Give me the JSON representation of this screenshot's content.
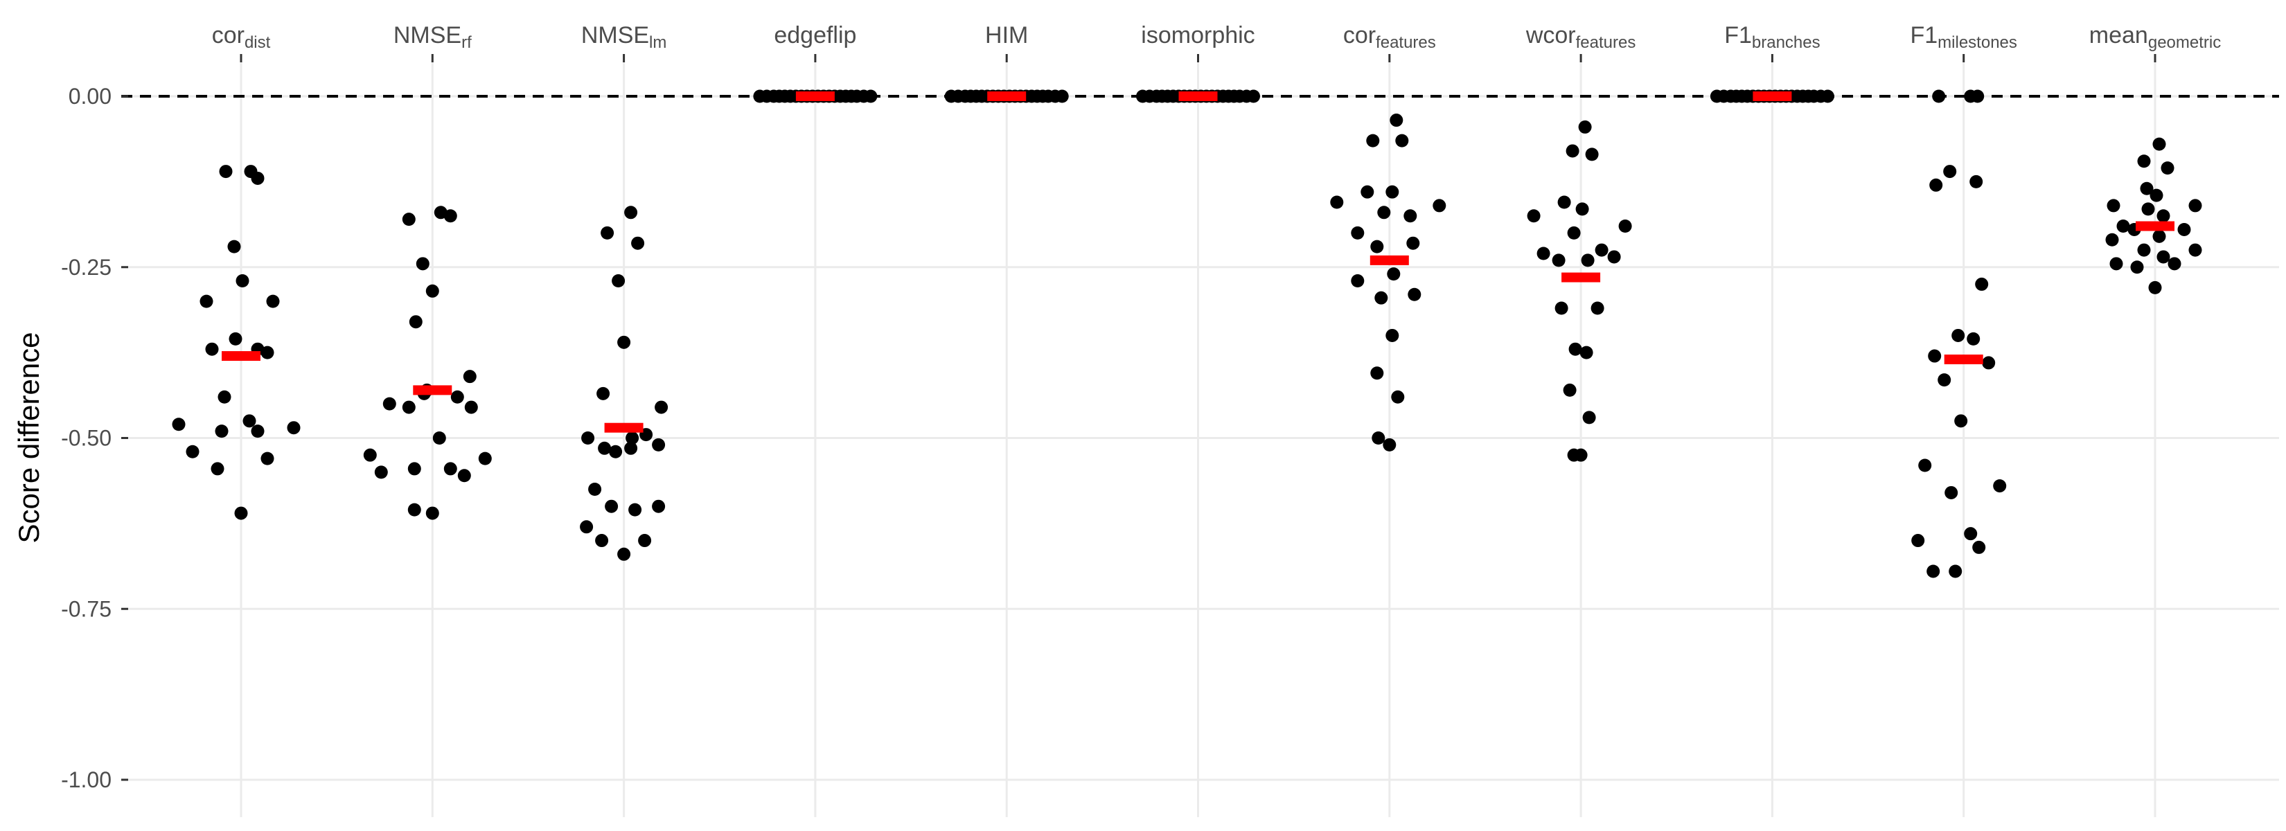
{
  "chart_data": {
    "type": "scatter",
    "ylabel": "Score difference",
    "ylim": [
      -1.0,
      0.0
    ],
    "y_ticks": [
      0.0,
      -0.25,
      -0.5,
      -0.75,
      -1.0
    ],
    "y_tick_labels": [
      "0.00",
      "-0.25",
      "-0.50",
      "-0.75",
      "-1.00"
    ],
    "reference_line": 0.0,
    "grid": true,
    "legend": "none",
    "point_color": "#000000",
    "median_color": "#ff0000",
    "categories": [
      {
        "base": "cor",
        "sub": "dist"
      },
      {
        "base": "NMSE",
        "sub": "rf"
      },
      {
        "base": "NMSE",
        "sub": "lm"
      },
      {
        "base": "edgeflip",
        "sub": ""
      },
      {
        "base": "HIM",
        "sub": ""
      },
      {
        "base": "isomorphic",
        "sub": ""
      },
      {
        "base": "cor",
        "sub": "features"
      },
      {
        "base": "wcor",
        "sub": "features"
      },
      {
        "base": "F1",
        "sub": "branches"
      },
      {
        "base": "F1",
        "sub": "milestones"
      },
      {
        "base": "mean",
        "sub": "geometric"
      }
    ],
    "series": [
      {
        "median": -0.38,
        "points": [
          [
            -0.11,
            -0.11
          ],
          [
            0.07,
            -0.11
          ],
          [
            0.12,
            -0.12
          ],
          [
            -0.05,
            -0.22
          ],
          [
            0.01,
            -0.27
          ],
          [
            -0.25,
            -0.3
          ],
          [
            0.23,
            -0.3
          ],
          [
            -0.04,
            -0.355
          ],
          [
            -0.21,
            -0.37
          ],
          [
            0.12,
            -0.37
          ],
          [
            0.19,
            -0.375
          ],
          [
            -0.12,
            -0.44
          ],
          [
            -0.45,
            -0.48
          ],
          [
            0.06,
            -0.475
          ],
          [
            0.38,
            -0.485
          ],
          [
            -0.14,
            -0.49
          ],
          [
            0.12,
            -0.49
          ],
          [
            -0.35,
            -0.52
          ],
          [
            0.19,
            -0.53
          ],
          [
            -0.17,
            -0.545
          ],
          [
            0.0,
            -0.61
          ]
        ]
      },
      {
        "median": -0.43,
        "points": [
          [
            -0.17,
            -0.18
          ],
          [
            0.06,
            -0.17
          ],
          [
            0.13,
            -0.175
          ],
          [
            -0.07,
            -0.245
          ],
          [
            0.0,
            -0.285
          ],
          [
            -0.12,
            -0.33
          ],
          [
            0.27,
            -0.41
          ],
          [
            0.18,
            -0.44
          ],
          [
            -0.06,
            -0.435
          ],
          [
            -0.04,
            -0.43
          ],
          [
            -0.31,
            -0.45
          ],
          [
            -0.17,
            -0.455
          ],
          [
            0.28,
            -0.455
          ],
          [
            0.05,
            -0.5
          ],
          [
            -0.45,
            -0.525
          ],
          [
            0.38,
            -0.53
          ],
          [
            -0.37,
            -0.55
          ],
          [
            -0.13,
            -0.545
          ],
          [
            0.13,
            -0.545
          ],
          [
            0.23,
            -0.555
          ],
          [
            -0.13,
            -0.605
          ],
          [
            0.0,
            -0.61
          ]
        ]
      },
      {
        "median": -0.485,
        "points": [
          [
            -0.12,
            -0.2
          ],
          [
            0.05,
            -0.17
          ],
          [
            0.1,
            -0.215
          ],
          [
            -0.04,
            -0.27
          ],
          [
            0.0,
            -0.36
          ],
          [
            -0.15,
            -0.435
          ],
          [
            0.27,
            -0.455
          ],
          [
            -0.26,
            -0.5
          ],
          [
            0.16,
            -0.495
          ],
          [
            0.06,
            -0.5
          ],
          [
            0.25,
            -0.51
          ],
          [
            -0.14,
            -0.515
          ],
          [
            0.05,
            -0.515
          ],
          [
            -0.06,
            -0.52
          ],
          [
            -0.21,
            -0.575
          ],
          [
            -0.09,
            -0.6
          ],
          [
            0.08,
            -0.605
          ],
          [
            0.25,
            -0.6
          ],
          [
            -0.27,
            -0.63
          ],
          [
            -0.16,
            -0.65
          ],
          [
            0.15,
            -0.65
          ],
          [
            0.0,
            -0.67
          ]
        ]
      },
      {
        "median": 0.0,
        "points": [
          [
            -0.4,
            0
          ],
          [
            -0.35,
            0
          ],
          [
            -0.3,
            0
          ],
          [
            -0.26,
            0
          ],
          [
            -0.22,
            0
          ],
          [
            -0.18,
            0
          ],
          [
            -0.14,
            0
          ],
          [
            -0.1,
            0
          ],
          [
            -0.06,
            0
          ],
          [
            -0.02,
            0
          ],
          [
            0.02,
            0
          ],
          [
            0.06,
            0
          ],
          [
            0.1,
            0
          ],
          [
            0.14,
            0
          ],
          [
            0.18,
            0
          ],
          [
            0.22,
            0
          ],
          [
            0.26,
            0
          ],
          [
            0.3,
            0
          ],
          [
            0.35,
            0
          ],
          [
            0.4,
            0
          ]
        ]
      },
      {
        "median": 0.0,
        "points": [
          [
            -0.4,
            0
          ],
          [
            -0.35,
            0
          ],
          [
            -0.3,
            0
          ],
          [
            -0.26,
            0
          ],
          [
            -0.22,
            0
          ],
          [
            -0.18,
            0
          ],
          [
            -0.14,
            0
          ],
          [
            -0.1,
            0
          ],
          [
            -0.06,
            0
          ],
          [
            -0.02,
            0
          ],
          [
            0.02,
            0
          ],
          [
            0.06,
            0
          ],
          [
            0.1,
            0
          ],
          [
            0.14,
            0
          ],
          [
            0.18,
            0
          ],
          [
            0.22,
            0
          ],
          [
            0.26,
            0
          ],
          [
            0.3,
            0
          ],
          [
            0.35,
            0
          ],
          [
            0.4,
            0
          ]
        ]
      },
      {
        "median": 0.0,
        "points": [
          [
            -0.4,
            0
          ],
          [
            -0.35,
            0
          ],
          [
            -0.3,
            0
          ],
          [
            -0.26,
            0
          ],
          [
            -0.22,
            0
          ],
          [
            -0.18,
            0
          ],
          [
            -0.14,
            0
          ],
          [
            -0.1,
            0
          ],
          [
            -0.06,
            0
          ],
          [
            -0.02,
            0
          ],
          [
            0.02,
            0
          ],
          [
            0.06,
            0
          ],
          [
            0.1,
            0
          ],
          [
            0.14,
            0
          ],
          [
            0.18,
            0
          ],
          [
            0.22,
            0
          ],
          [
            0.26,
            0
          ],
          [
            0.3,
            0
          ],
          [
            0.35,
            0
          ],
          [
            0.4,
            0
          ]
        ]
      },
      {
        "median": -0.24,
        "points": [
          [
            0.05,
            -0.035
          ],
          [
            -0.12,
            -0.065
          ],
          [
            0.09,
            -0.065
          ],
          [
            -0.16,
            -0.14
          ],
          [
            0.02,
            -0.14
          ],
          [
            -0.38,
            -0.155
          ],
          [
            0.36,
            -0.16
          ],
          [
            -0.04,
            -0.17
          ],
          [
            0.15,
            -0.175
          ],
          [
            -0.23,
            -0.2
          ],
          [
            -0.09,
            -0.22
          ],
          [
            0.17,
            -0.215
          ],
          [
            -0.23,
            -0.27
          ],
          [
            0.03,
            -0.26
          ],
          [
            0.18,
            -0.29
          ],
          [
            -0.06,
            -0.295
          ],
          [
            0.02,
            -0.35
          ],
          [
            -0.09,
            -0.405
          ],
          [
            0.06,
            -0.44
          ],
          [
            -0.08,
            -0.5
          ],
          [
            0.0,
            -0.51
          ]
        ]
      },
      {
        "median": -0.265,
        "points": [
          [
            0.03,
            -0.045
          ],
          [
            -0.06,
            -0.08
          ],
          [
            0.08,
            -0.085
          ],
          [
            -0.34,
            -0.175
          ],
          [
            -0.12,
            -0.155
          ],
          [
            0.01,
            -0.165
          ],
          [
            0.32,
            -0.19
          ],
          [
            -0.05,
            -0.2
          ],
          [
            -0.27,
            -0.23
          ],
          [
            -0.16,
            -0.24
          ],
          [
            0.15,
            -0.225
          ],
          [
            0.24,
            -0.235
          ],
          [
            0.05,
            -0.24
          ],
          [
            -0.14,
            -0.31
          ],
          [
            0.12,
            -0.31
          ],
          [
            -0.04,
            -0.37
          ],
          [
            0.04,
            -0.375
          ],
          [
            -0.08,
            -0.43
          ],
          [
            0.06,
            -0.47
          ],
          [
            -0.05,
            -0.525
          ],
          [
            0.0,
            -0.525
          ]
        ]
      },
      {
        "median": 0.0,
        "points": [
          [
            -0.4,
            0
          ],
          [
            -0.35,
            0
          ],
          [
            -0.3,
            0
          ],
          [
            -0.26,
            0
          ],
          [
            -0.22,
            0
          ],
          [
            -0.18,
            0
          ],
          [
            -0.14,
            0
          ],
          [
            -0.1,
            0
          ],
          [
            -0.06,
            0
          ],
          [
            -0.02,
            0
          ],
          [
            0.02,
            0
          ],
          [
            0.06,
            0
          ],
          [
            0.1,
            0
          ],
          [
            0.14,
            0
          ],
          [
            0.18,
            0
          ],
          [
            0.22,
            0
          ],
          [
            0.26,
            0
          ],
          [
            0.3,
            0
          ],
          [
            0.35,
            0
          ],
          [
            0.4,
            0
          ]
        ]
      },
      {
        "median": -0.385,
        "points": [
          [
            -0.18,
            0
          ],
          [
            0.05,
            0
          ],
          [
            0.1,
            0
          ],
          [
            -0.2,
            -0.13
          ],
          [
            -0.1,
            -0.11
          ],
          [
            0.09,
            -0.125
          ],
          [
            0.13,
            -0.275
          ],
          [
            -0.04,
            -0.35
          ],
          [
            0.07,
            -0.355
          ],
          [
            -0.21,
            -0.38
          ],
          [
            0.18,
            -0.39
          ],
          [
            -0.14,
            -0.415
          ],
          [
            -0.02,
            -0.475
          ],
          [
            -0.28,
            -0.54
          ],
          [
            0.26,
            -0.57
          ],
          [
            -0.09,
            -0.58
          ],
          [
            -0.33,
            -0.65
          ],
          [
            0.05,
            -0.64
          ],
          [
            0.11,
            -0.66
          ],
          [
            -0.22,
            -0.695
          ],
          [
            -0.06,
            -0.695
          ]
        ]
      },
      {
        "median": -0.19,
        "points": [
          [
            0.03,
            -0.07
          ],
          [
            -0.08,
            -0.095
          ],
          [
            0.09,
            -0.105
          ],
          [
            -0.06,
            -0.135
          ],
          [
            0.01,
            -0.145
          ],
          [
            -0.3,
            -0.16
          ],
          [
            -0.05,
            -0.165
          ],
          [
            0.29,
            -0.16
          ],
          [
            0.06,
            -0.175
          ],
          [
            -0.23,
            -0.19
          ],
          [
            -0.15,
            -0.195
          ],
          [
            0.03,
            -0.205
          ],
          [
            0.21,
            -0.195
          ],
          [
            -0.31,
            -0.21
          ],
          [
            -0.08,
            -0.225
          ],
          [
            0.29,
            -0.225
          ],
          [
            0.06,
            -0.235
          ],
          [
            0.14,
            -0.245
          ],
          [
            -0.28,
            -0.245
          ],
          [
            -0.13,
            -0.25
          ],
          [
            0.0,
            -0.28
          ]
        ]
      }
    ]
  }
}
